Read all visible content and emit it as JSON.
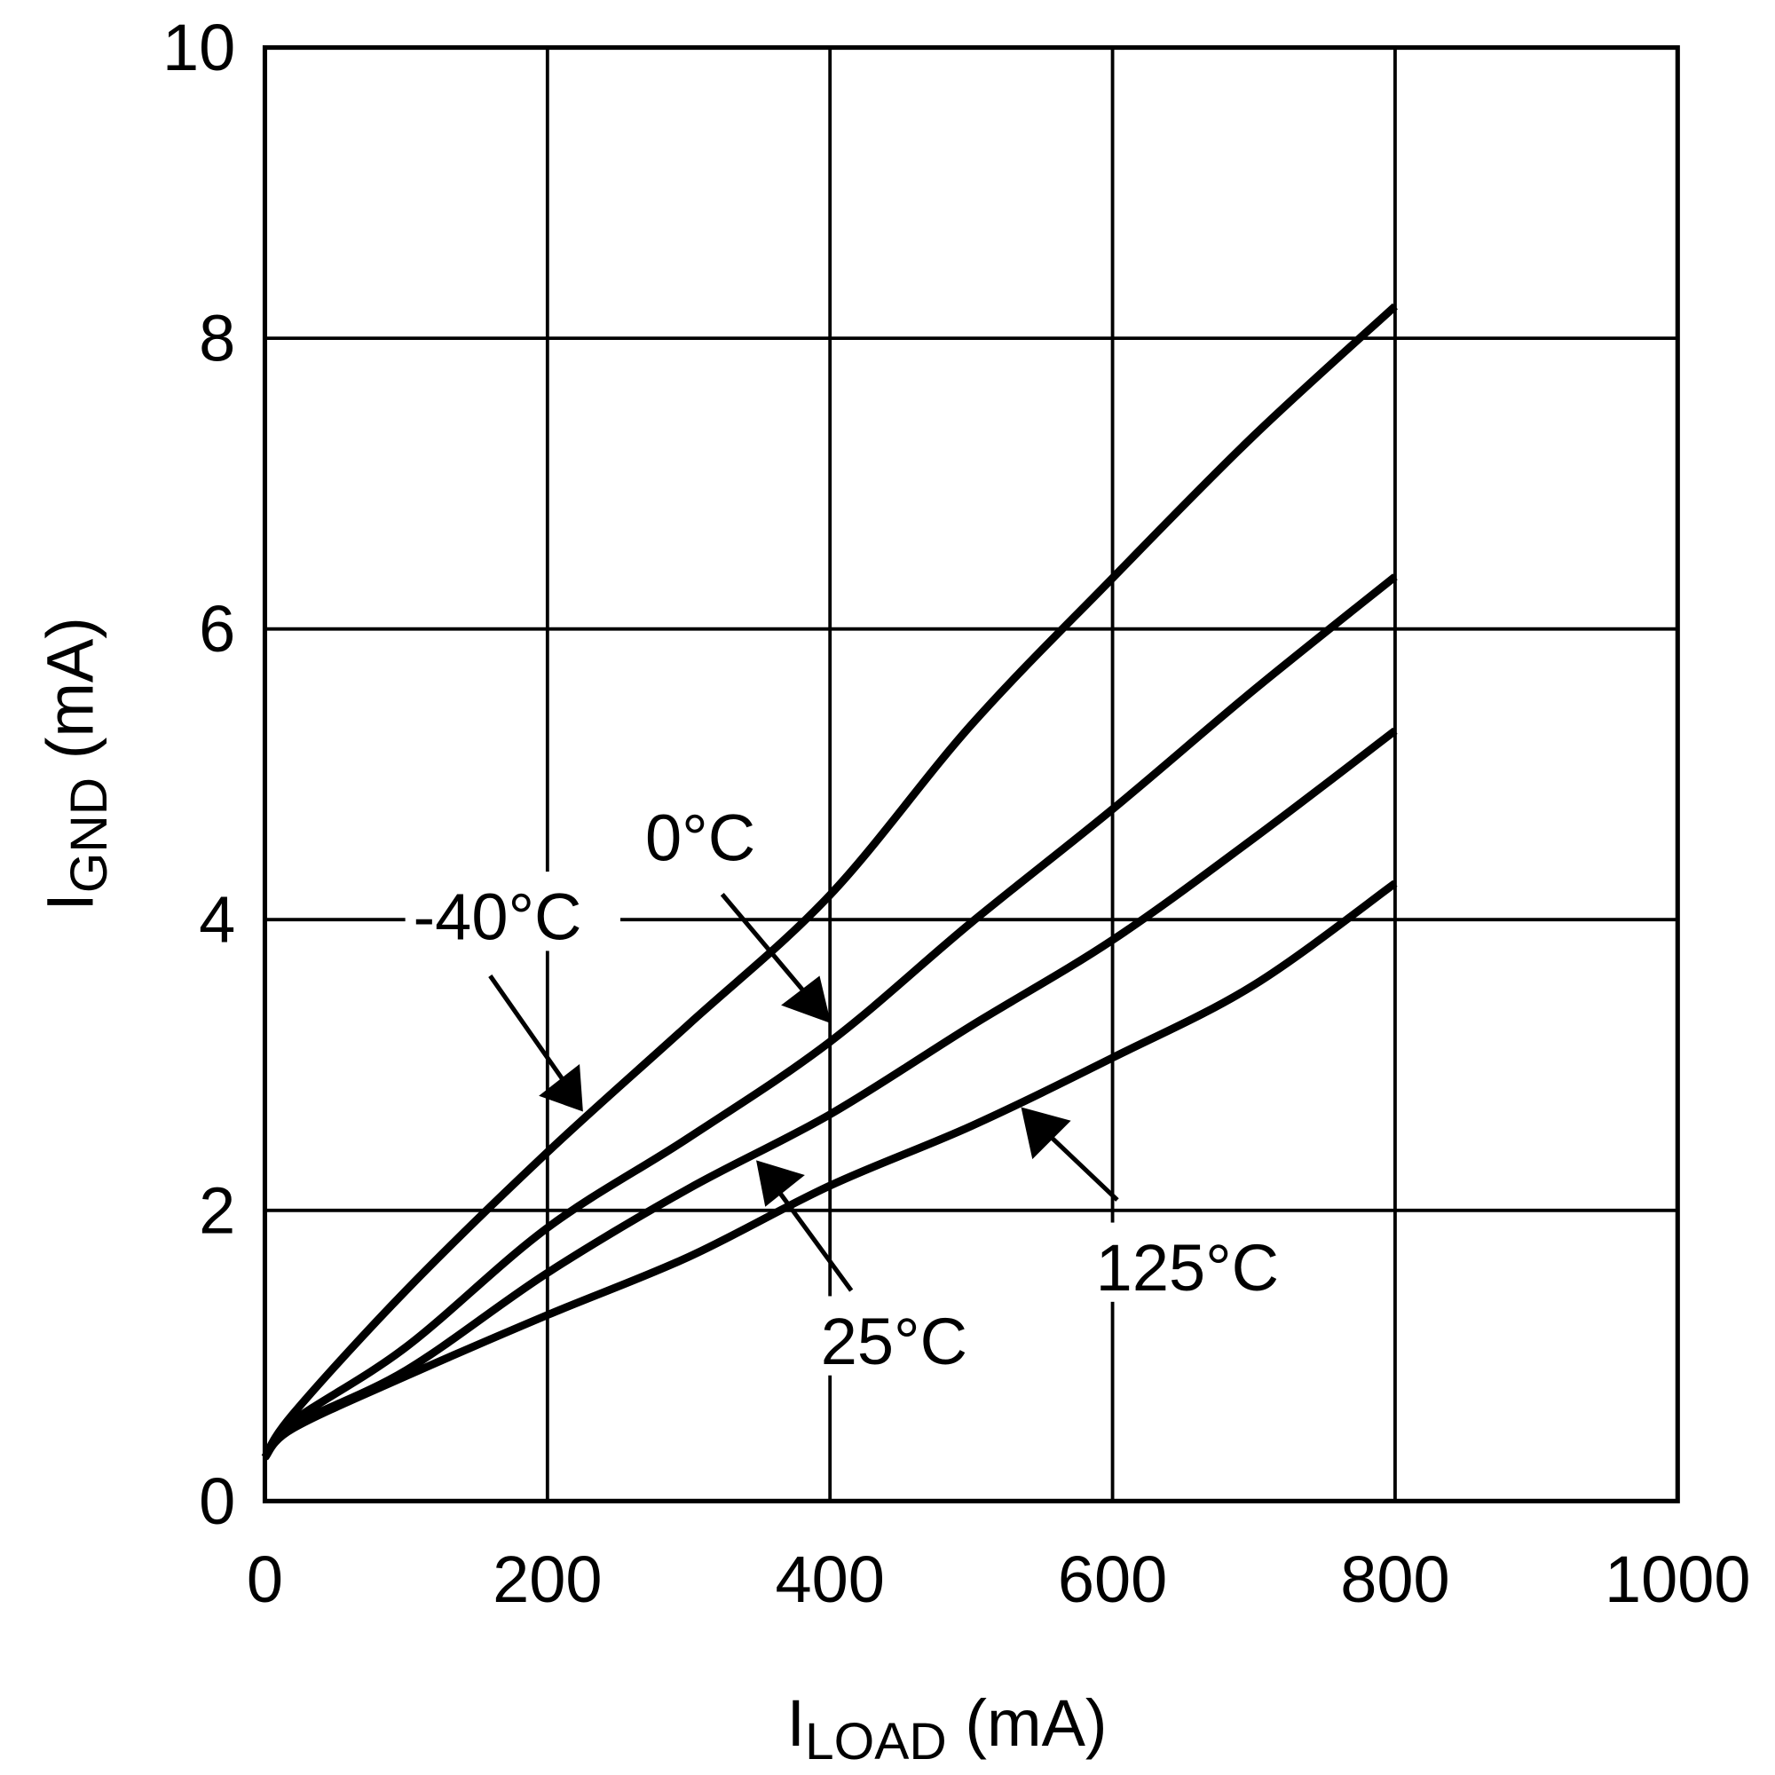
{
  "chart_data": {
    "type": "line",
    "xlabel": {
      "main": "I",
      "sub": "LOAD",
      "unit": " (mA)"
    },
    "ylabel": {
      "main": "I",
      "sub": "GND",
      "unit": " (mA)"
    },
    "xlim": [
      0,
      1000
    ],
    "ylim": [
      0,
      10
    ],
    "xticks": [
      "0",
      "200",
      "400",
      "600",
      "800",
      "1000"
    ],
    "yticks": [
      "0",
      "2",
      "4",
      "6",
      "8",
      "10"
    ],
    "grid": true,
    "x": [
      0,
      20,
      100,
      200,
      300,
      400,
      500,
      600,
      700,
      800
    ],
    "series": [
      {
        "name": "-40°C",
        "values": [
          0.3,
          0.6,
          1.45,
          2.4,
          3.28,
          4.17,
          5.34,
          6.35,
          7.33,
          8.22
        ]
      },
      {
        "name": "0°C",
        "values": [
          0.3,
          0.55,
          1.06,
          1.88,
          2.5,
          3.16,
          3.98,
          4.76,
          5.58,
          6.36
        ]
      },
      {
        "name": "25°C",
        "values": [
          0.3,
          0.52,
          0.9,
          1.57,
          2.15,
          2.66,
          3.27,
          3.86,
          4.56,
          5.3
        ]
      },
      {
        "name": "125°C",
        "values": [
          0.3,
          0.5,
          0.86,
          1.28,
          1.68,
          2.17,
          2.58,
          3.05,
          3.55,
          4.25
        ]
      }
    ],
    "line_color": "#000000"
  }
}
